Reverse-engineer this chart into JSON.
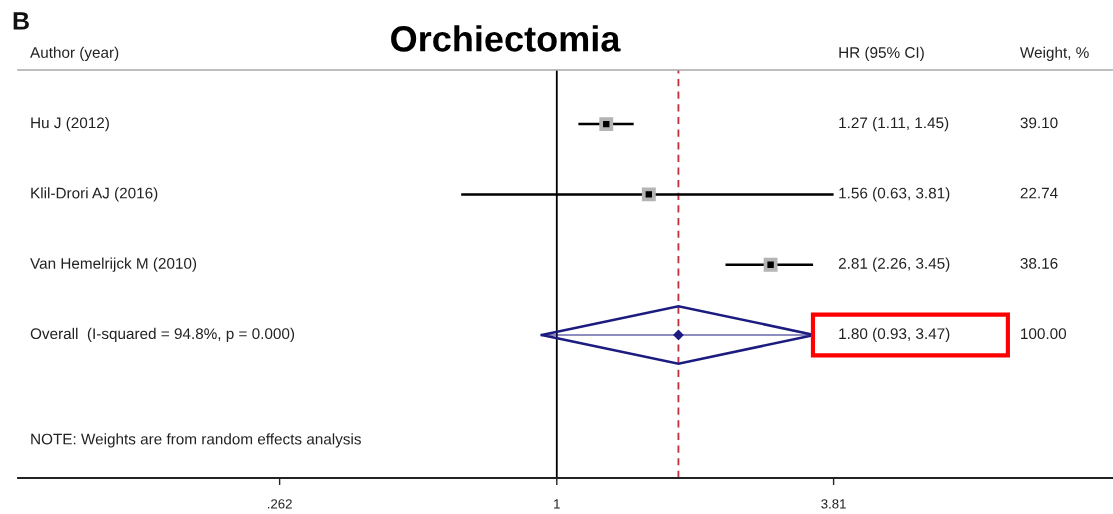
{
  "chart_data": {
    "type": "scatter",
    "orientation": "horizontal",
    "title": "Orchiectomia",
    "ylabel": "Author (year)",
    "categories": [
      "Hu J (2012)",
      "Klil-Drori AJ (2016)",
      "Van Hemelrijck M (2010)",
      "Overall  (I-squared = 94.8%, p = 0.000)"
    ],
    "series": [
      {
        "color": "#000000",
        "marker": "square",
        "values": [
          1.27,
          1.56,
          2.81,
          null
        ],
        "errors": [
          [
            1.11,
            1.45
          ],
          [
            0.63,
            3.81
          ],
          [
            2.26,
            3.45
          ],
          null
        ]
      },
      {
        "color": "#1c1c80",
        "marker": "diamond",
        "values": [
          null,
          null,
          null,
          1.8
        ],
        "errors": [
          null,
          null,
          null,
          [
            0.93,
            3.47
          ]
        ]
      }
    ],
    "log": "x",
    "xlim": [
      0.074,
      14.7
    ],
    "xticks": [
      {
        "value": 0.262,
        "label": ".262"
      },
      1,
      3.81
    ],
    "ref_lines": [
      {
        "axis": "x",
        "value": 1,
        "color": "#000000",
        "line_style": "solid"
      },
      {
        "axis": "x",
        "value": 1.8,
        "color": "#c0303a",
        "line_style": "dashed"
      }
    ],
    "annotations": [
      "B",
      "HR (95% CI)",
      "1.27 (1.11, 1.45)",
      "1.56 (0.63, 3.81)",
      "2.81 (2.26, 3.45)",
      "1.80 (0.93, 3.47)",
      "Weight, %",
      "39.10",
      "22.74",
      "38.16",
      "100.00",
      "NOTE: Weights are from random effects analysis"
    ]
  }
}
